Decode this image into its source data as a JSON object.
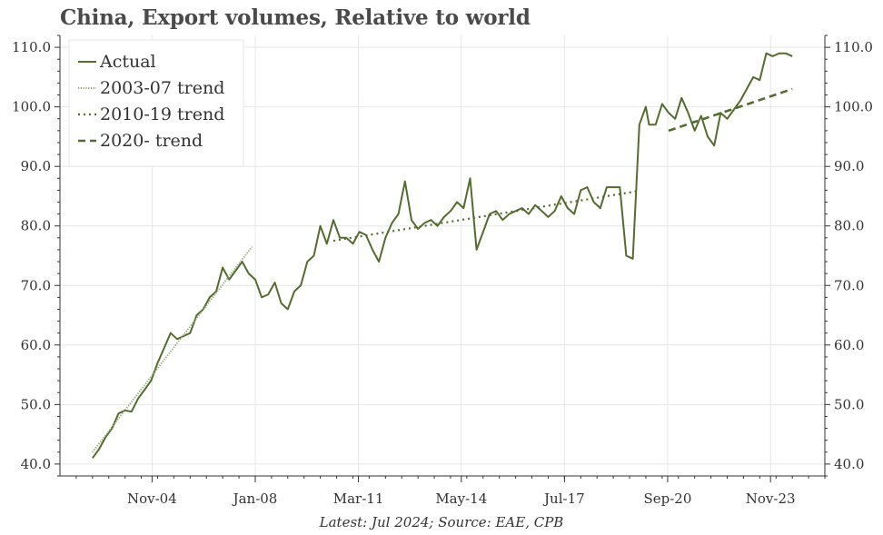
{
  "chart_data": {
    "type": "line",
    "title": "China, Export volumes, Relative to world",
    "footer": "Latest: Jul 2024; Source: EAE, CPB",
    "xlabel": "",
    "ylabel": "",
    "x_range": [
      2002.0,
      2025.5
    ],
    "x_ticks": [
      {
        "value": 2004.83,
        "label": "Nov-04"
      },
      {
        "value": 2008.0,
        "label": "Jan-08"
      },
      {
        "value": 2011.17,
        "label": "Mar-11"
      },
      {
        "value": 2014.33,
        "label": "May-14"
      },
      {
        "value": 2017.5,
        "label": "Jul-17"
      },
      {
        "value": 2020.67,
        "label": "Sep-20"
      },
      {
        "value": 2023.83,
        "label": "Nov-23"
      }
    ],
    "ylim": [
      38,
      112
    ],
    "y_ticks": [
      {
        "value": 40,
        "label": "40.0"
      },
      {
        "value": 50,
        "label": "50.0"
      },
      {
        "value": 60,
        "label": "60.0"
      },
      {
        "value": 70,
        "label": "70.0"
      },
      {
        "value": 80,
        "label": "80.0"
      },
      {
        "value": 90,
        "label": "90.0"
      },
      {
        "value": 100,
        "label": "100.0"
      },
      {
        "value": 110,
        "label": "110.0"
      }
    ],
    "grid": true,
    "legend": {
      "placement": "top-left"
    },
    "series": [
      {
        "name": "Actual",
        "style": "solid",
        "color": "#556b2f",
        "x": [
          2003.0,
          2003.2,
          2003.4,
          2003.6,
          2003.8,
          2004.0,
          2004.2,
          2004.4,
          2004.6,
          2004.8,
          2005.0,
          2005.2,
          2005.4,
          2005.6,
          2005.8,
          2006.0,
          2006.2,
          2006.4,
          2006.6,
          2006.8,
          2007.0,
          2007.2,
          2007.4,
          2007.6,
          2007.8,
          2008.0,
          2008.2,
          2008.4,
          2008.6,
          2008.8,
          2009.0,
          2009.2,
          2009.4,
          2009.6,
          2009.8,
          2010.0,
          2010.2,
          2010.4,
          2010.6,
          2010.8,
          2011.0,
          2011.2,
          2011.4,
          2011.6,
          2011.8,
          2012.0,
          2012.2,
          2012.4,
          2012.6,
          2012.8,
          2013.0,
          2013.2,
          2013.4,
          2013.6,
          2013.8,
          2014.0,
          2014.2,
          2014.4,
          2014.6,
          2014.8,
          2015.0,
          2015.2,
          2015.4,
          2015.6,
          2015.8,
          2016.0,
          2016.2,
          2016.4,
          2016.6,
          2016.8,
          2017.0,
          2017.2,
          2017.4,
          2017.6,
          2017.8,
          2018.0,
          2018.2,
          2018.4,
          2018.6,
          2018.8,
          2019.0,
          2019.2,
          2019.4,
          2019.6,
          2019.8,
          2020.0,
          2020.1,
          2020.3,
          2020.5,
          2020.7,
          2020.9,
          2021.1,
          2021.3,
          2021.5,
          2021.7,
          2021.9,
          2022.1,
          2022.3,
          2022.5,
          2022.7,
          2022.9,
          2023.1,
          2023.3,
          2023.5,
          2023.7,
          2023.9,
          2024.1,
          2024.3,
          2024.5
        ],
        "y": [
          41.0,
          42.5,
          44.5,
          46.0,
          48.5,
          49.0,
          48.8,
          51.0,
          52.5,
          54.0,
          57.0,
          59.5,
          62.0,
          61.0,
          61.5,
          62.0,
          65.0,
          66.0,
          68.0,
          69.0,
          73.0,
          71.0,
          72.5,
          74.0,
          72.0,
          71.0,
          68.0,
          68.5,
          70.5,
          67.0,
          66.0,
          69.0,
          70.0,
          74.0,
          75.0,
          80.0,
          77.0,
          81.0,
          78.0,
          78.0,
          77.0,
          79.0,
          78.5,
          76.0,
          74.0,
          78.0,
          80.5,
          82.0,
          87.5,
          81.0,
          79.5,
          80.5,
          81.0,
          80.0,
          81.5,
          82.5,
          84.0,
          83.0,
          88.0,
          76.0,
          79.0,
          82.0,
          82.5,
          81.0,
          82.0,
          82.5,
          83.0,
          82.0,
          83.5,
          82.5,
          81.5,
          82.5,
          85.0,
          83.0,
          82.0,
          86.0,
          86.5,
          84.0,
          83.0,
          86.5,
          86.5,
          86.5,
          75.0,
          74.5,
          97.0,
          100.0,
          97.0,
          97.0,
          100.5,
          99.0,
          98.0,
          101.5,
          99.0,
          96.0,
          98.5,
          95.0,
          93.5,
          99.0,
          98.0,
          99.5,
          101.0,
          103.0,
          105.0,
          104.5,
          109.0,
          108.5,
          109.0,
          109.0,
          108.5
        ]
      },
      {
        "name": "2003-07 trend",
        "style": "fine-dotted",
        "color": "#8fa376",
        "x": [
          2003.0,
          2007.9
        ],
        "y": [
          42.0,
          76.5
        ]
      },
      {
        "name": "2010-19 trend",
        "style": "dotted",
        "color": "#556b2f",
        "x": [
          2010.4,
          2019.7
        ],
        "y": [
          77.5,
          85.8
        ]
      },
      {
        "name": "2020- trend",
        "style": "dashed",
        "color": "#556b2f",
        "x": [
          2020.7,
          2024.5
        ],
        "y": [
          96.0,
          103.0
        ]
      }
    ]
  }
}
